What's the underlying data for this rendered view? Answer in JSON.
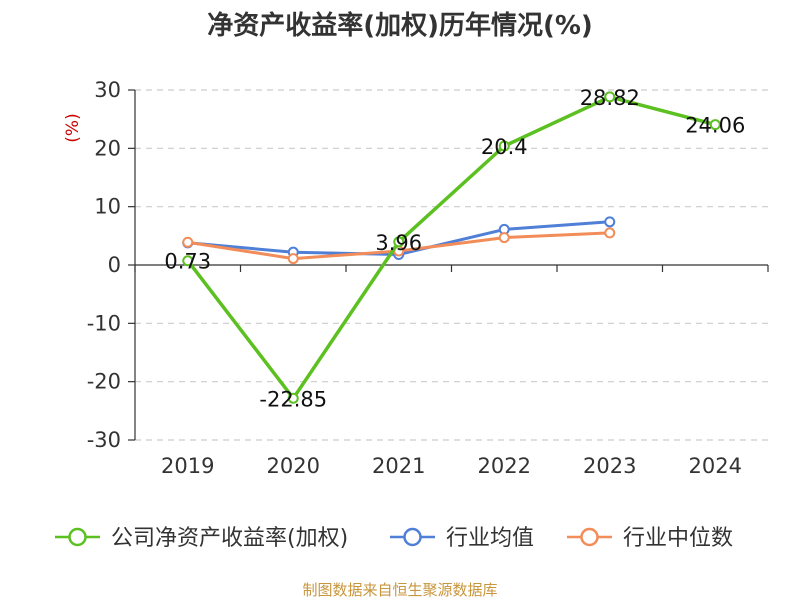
{
  "chart_data": {
    "type": "line",
    "title": "净资产收益率(加权)历年情况(%)",
    "ylabel": "(%)",
    "xlabel": "",
    "categories": [
      "2019",
      "2020",
      "2021",
      "2022",
      "2023",
      "2024"
    ],
    "ylim": [
      -30,
      30
    ],
    "yticks": [
      -30,
      -20,
      -10,
      0,
      10,
      20,
      30
    ],
    "grid": true,
    "legend_position": "bottom",
    "series": [
      {
        "name": "公司净资产收益率(加权)",
        "color": "#5cc021",
        "values": [
          0.73,
          -22.85,
          3.96,
          20.4,
          28.82,
          24.06
        ],
        "data_labels": [
          "0.73",
          "-22.85",
          "3.96",
          "20.4",
          "28.82",
          "24.06"
        ]
      },
      {
        "name": "行业均值",
        "color": "#4f7fd6",
        "values": [
          3.8,
          2.2,
          1.8,
          6.1,
          7.4,
          null
        ]
      },
      {
        "name": "行业中位数",
        "color": "#f28c58",
        "values": [
          3.9,
          1.1,
          2.4,
          4.7,
          5.5,
          null
        ]
      }
    ],
    "source": "制图数据来自恒生聚源数据库",
    "ylabel_color": "#cc0000",
    "source_color": "#c8963c"
  }
}
